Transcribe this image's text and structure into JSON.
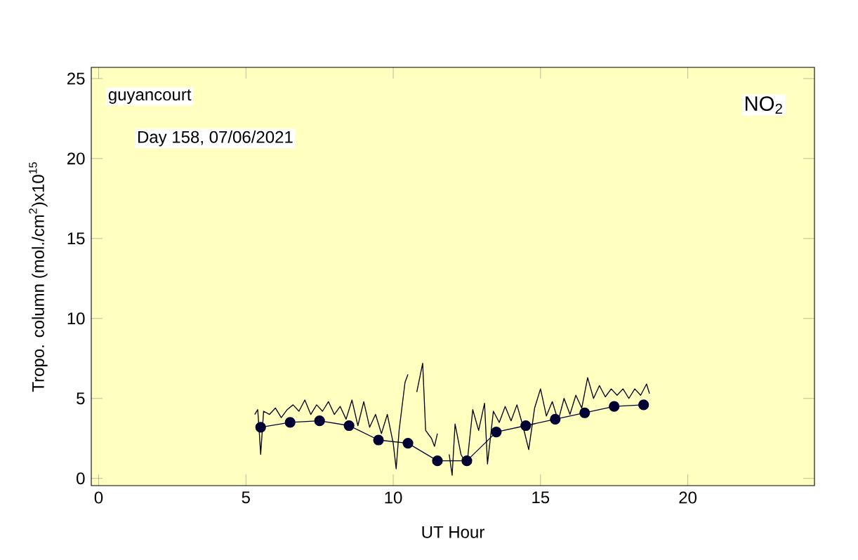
{
  "chart_data": {
    "type": "line",
    "xlabel": "UT Hour",
    "ylabel": "Tropo. column (mol./cm$^{2}$)x10$^{15}$",
    "annotations": [
      "guyancourt",
      "Day 158, 07/06/2021",
      "NO$_{2}$"
    ],
    "xlim": [
      -0.25,
      24.3
    ],
    "ylim": [
      -0.45,
      25.7
    ],
    "xticks": [
      0,
      5,
      10,
      15,
      20
    ],
    "yticks": [
      0,
      5,
      10,
      15,
      20,
      25
    ],
    "grid": false,
    "series": [
      {
        "color": "#000000",
        "marker": "none",
        "x": [
          5.3,
          5.4,
          5.45,
          5.5,
          5.6,
          5.8,
          6.0,
          6.2,
          6.4,
          6.6,
          6.8,
          7.0,
          7.2,
          7.4,
          7.6,
          7.8,
          8.0,
          8.2,
          8.4,
          8.6,
          8.8,
          9.0,
          9.2,
          9.4,
          9.6,
          9.8,
          10.0,
          10.1,
          10.2,
          10.4,
          10.5,
          10.6,
          10.8,
          11.0,
          11.1,
          11.3,
          11.4,
          11.5,
          11.7,
          11.9,
          12.0,
          12.1,
          12.3,
          12.5,
          12.7,
          12.9,
          13.1,
          13.2,
          13.4,
          13.6,
          13.8,
          14.0,
          14.2,
          14.4,
          14.6,
          14.8,
          15.0,
          15.2,
          15.4,
          15.6,
          15.8,
          16.0,
          16.2,
          16.4,
          16.6,
          16.8,
          17.0,
          17.2,
          17.4,
          17.6,
          17.8,
          18.0,
          18.2,
          18.4,
          18.6,
          18.7
        ],
        "values": [
          4.0,
          4.3,
          3.0,
          1.5,
          4.2,
          4.0,
          4.4,
          3.8,
          4.3,
          4.6,
          4.2,
          4.9,
          4.0,
          4.6,
          4.2,
          4.8,
          4.0,
          4.5,
          3.7,
          4.9,
          3.3,
          4.8,
          3.2,
          4.0,
          2.8,
          4.0,
          2.2,
          0.6,
          3.0,
          6.0,
          6.5,
          null,
          5.4,
          7.2,
          3.0,
          2.5,
          2.0,
          2.8,
          null,
          1.5,
          0.2,
          3.4,
          1.5,
          0.8,
          4.3,
          3.0,
          4.7,
          0.9,
          4.2,
          3.5,
          4.5,
          3.6,
          4.6,
          3.3,
          1.8,
          4.4,
          5.6,
          3.9,
          4.8,
          3.6,
          5.0,
          4.0,
          5.2,
          4.4,
          6.3,
          5.0,
          5.8,
          5.1,
          5.6,
          5.2,
          5.6,
          5.0,
          5.6,
          5.2,
          5.9,
          5.3
        ]
      },
      {
        "color": "#000033",
        "marker": "circle",
        "x": [
          5.5,
          6.5,
          7.5,
          8.5,
          9.5,
          10.5,
          11.5,
          12.5,
          13.5,
          14.5,
          15.5,
          16.5,
          17.5,
          18.5
        ],
        "values": [
          3.2,
          3.5,
          3.6,
          3.3,
          2.4,
          2.2,
          1.1,
          1.1,
          2.9,
          3.3,
          3.7,
          4.1,
          4.5,
          4.6
        ]
      }
    ]
  }
}
